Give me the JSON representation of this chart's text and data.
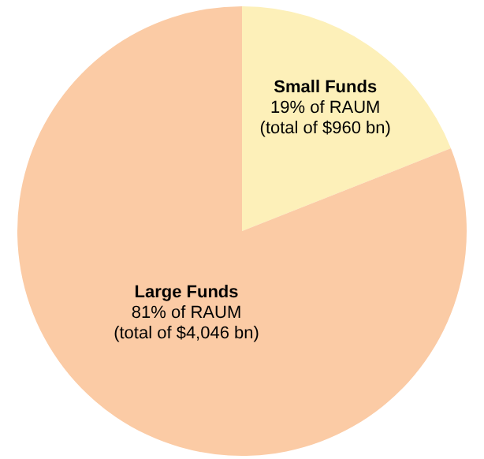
{
  "chart_data": {
    "type": "pie",
    "categories": [
      "Small Funds",
      "Large Funds"
    ],
    "values": [
      19,
      81
    ],
    "colors": [
      "#fdf0b9",
      "#fbcba5"
    ],
    "value_labels": [
      "19% of RAUM\n(total of $960 bn)",
      "81% of RAUM\n(total of $4,046 bn)"
    ]
  }
}
